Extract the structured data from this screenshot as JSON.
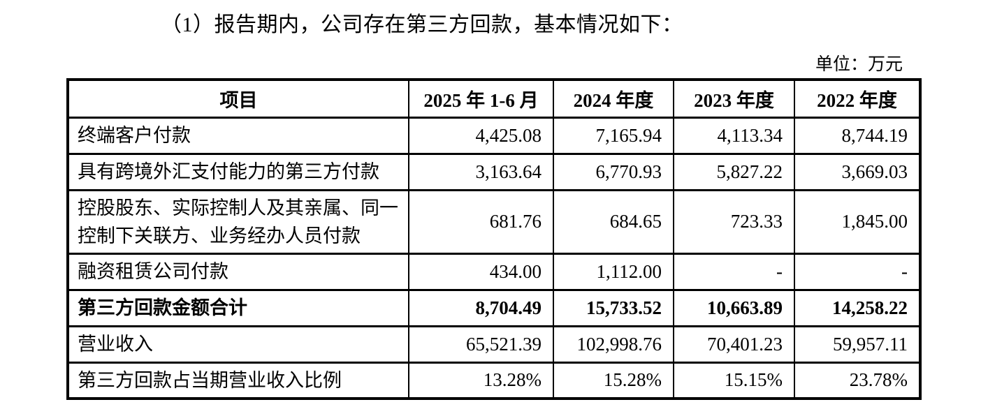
{
  "page": {
    "title": "（1）报告期内，公司存在第三方回款，基本情况如下：",
    "unit_label": "单位：万元"
  },
  "table": {
    "headers": [
      "项目",
      "2025 年 1-6 月",
      "2024 年度",
      "2023 年度",
      "2022 年度"
    ],
    "rows": [
      {
        "label": "终端客户付款",
        "values": [
          "4,425.08",
          "7,165.94",
          "4,113.34",
          "8,744.19"
        ],
        "bold": false
      },
      {
        "label": "具有跨境外汇支付能力的第三方付款",
        "values": [
          "3,163.64",
          "6,770.93",
          "5,827.22",
          "3,669.03"
        ],
        "bold": false
      },
      {
        "label": "控股股东、实际控制人及其亲属、同一控制下关联方、业务经办人员付款",
        "values": [
          "681.76",
          "684.65",
          "723.33",
          "1,845.00"
        ],
        "bold": false
      },
      {
        "label": "融资租赁公司付款",
        "values": [
          "434.00",
          "1,112.00",
          "-",
          "-"
        ],
        "bold": false
      },
      {
        "label": "第三方回款金额合计",
        "values": [
          "8,704.49",
          "15,733.52",
          "10,663.89",
          "14,258.22"
        ],
        "bold": true
      },
      {
        "label": "营业收入",
        "values": [
          "65,521.39",
          "102,998.76",
          "70,401.23",
          "59,957.11"
        ],
        "bold": false
      },
      {
        "label": "第三方回款占当期营业收入比例",
        "values": [
          "13.28%",
          "15.28%",
          "15.15%",
          "23.78%"
        ],
        "bold": false
      }
    ]
  }
}
